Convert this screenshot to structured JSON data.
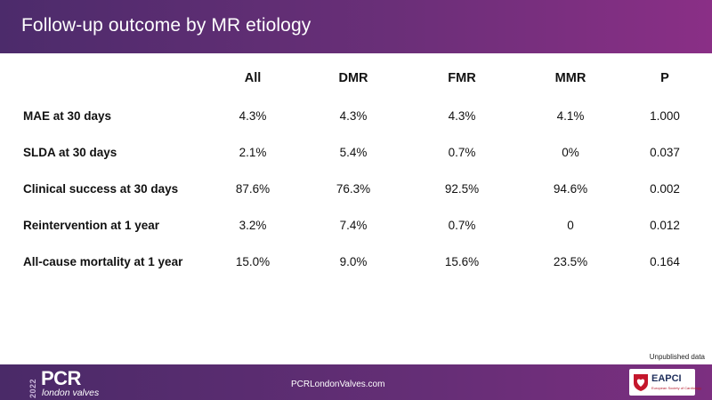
{
  "header": {
    "title": "Follow-up outcome by MR etiology",
    "accent_color": "#5c2d72"
  },
  "table": {
    "columns": [
      "All",
      "DMR",
      "FMR",
      "MMR",
      "P"
    ],
    "rows": [
      {
        "label": "MAE at 30 days",
        "values": [
          "4.3%",
          "4.3%",
          "4.3%",
          "4.1%",
          "1.000"
        ]
      },
      {
        "label": "SLDA at 30 days",
        "values": [
          "2.1%",
          "5.4%",
          "0.7%",
          "0%",
          "0.037"
        ]
      },
      {
        "label": "Clinical success at 30 days",
        "values": [
          "87.6%",
          "76.3%",
          "92.5%",
          "94.6%",
          "0.002"
        ]
      },
      {
        "label": "Reintervention at 1 year",
        "values": [
          "3.2%",
          "7.4%",
          "0.7%",
          "0",
          "0.012"
        ]
      },
      {
        "label": "All-cause mortality at 1 year",
        "values": [
          "15.0%",
          "9.0%",
          "15.6%",
          "23.5%",
          "0.164"
        ]
      }
    ]
  },
  "note": "Unpublished data",
  "footer": {
    "logo_year": "2022",
    "logo_word": "PCR",
    "logo_sub": "london valves",
    "url": "PCRLondonValves.com",
    "partner_word": "EAPCI",
    "partner_sub": "European Society of Cardiology",
    "partner_icon": "heart-shield-icon"
  }
}
